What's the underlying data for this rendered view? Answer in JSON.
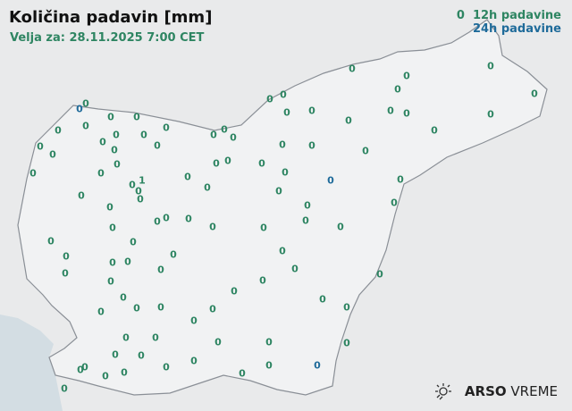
{
  "header": {
    "title": "Količina padavin [mm]",
    "valid": "Velja za: 28.11.2025 7:00 CET"
  },
  "legend": {
    "sample_value": "0",
    "label_12h": "12h padavine",
    "label_24h": "24h padavine"
  },
  "colors": {
    "12h": "#2e8562",
    "24h": "#1f6b9a",
    "border": "#8a8f96",
    "sea": "#d3dde3"
  },
  "logo": {
    "brand": "ARSO",
    "product": "VREME",
    "icon": "sun-weather-icon"
  },
  "stations": {
    "12h": [
      "0",
      "0",
      "0",
      "0",
      "0",
      "0",
      "0",
      "0",
      "0",
      "0",
      "0",
      "0",
      "0",
      "0",
      "0",
      "0",
      "0",
      "0",
      "0",
      "0",
      "0",
      "0",
      "0",
      "0",
      "0",
      "0",
      "0",
      "0",
      "0",
      "0",
      "0",
      "0",
      "0",
      "0",
      "0",
      "0",
      "0",
      "0",
      "0",
      "0",
      "0",
      "0",
      "0",
      "0",
      "0",
      "0",
      "0",
      "0",
      "0",
      "0",
      "0",
      "0",
      "0",
      "0",
      "0",
      "0",
      "0",
      "0",
      "0",
      "0",
      "0",
      "0",
      "0",
      "0",
      "0",
      "0",
      "0",
      "0",
      "0",
      "0",
      "0",
      "0",
      "0",
      "0",
      "0",
      "0",
      "0",
      "0",
      "0",
      "0",
      "0",
      "0",
      "0",
      "0",
      "0",
      "0",
      "0",
      "0",
      "0",
      "0",
      "0",
      "0",
      "0",
      "0",
      "0",
      "0",
      "0",
      "1"
    ],
    "24h": [
      "0",
      "0",
      "0"
    ]
  }
}
